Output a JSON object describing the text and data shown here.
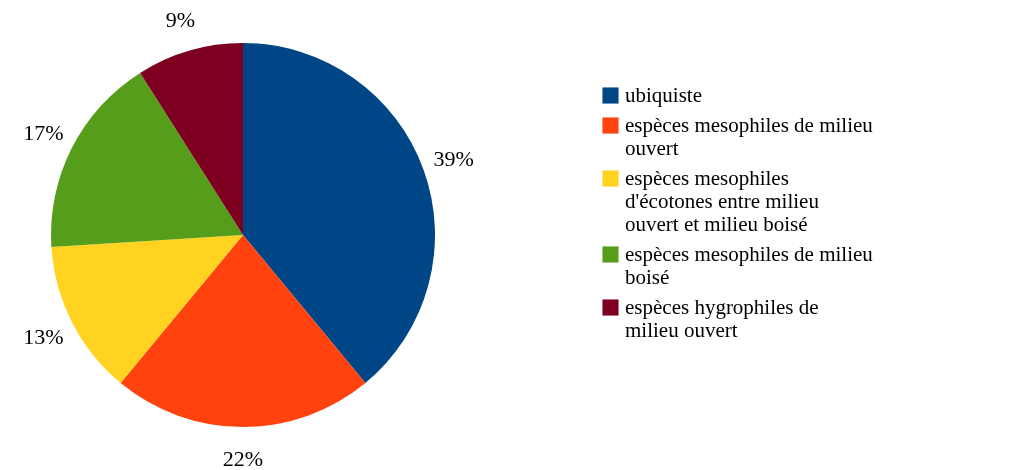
{
  "chart_data": {
    "type": "pie",
    "categories": [
      "ubiquiste",
      "espèces mesophiles de milieu ouvert",
      "espèces mesophiles d'écotones entre milieu ouvert et milieu boisé",
      "espèces mesophiles de milieu boisé",
      "espèces hygrophiles de milieu ouvert"
    ],
    "values": [
      39,
      22,
      13,
      17,
      9
    ],
    "colors": [
      "#004586",
      "#ff420e",
      "#ffd320",
      "#579d1c",
      "#7e0021"
    ],
    "value_labels": [
      "39%",
      "22%",
      "13%",
      "17%",
      "9%"
    ],
    "legend": "right"
  }
}
